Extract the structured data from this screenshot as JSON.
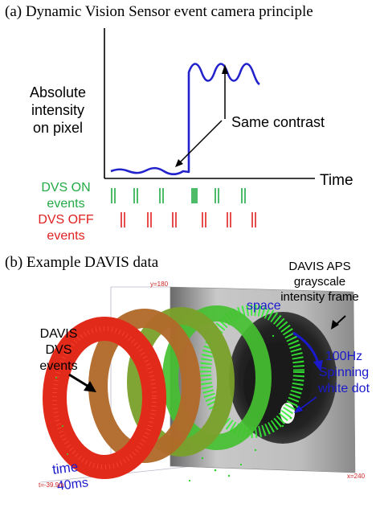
{
  "panel_a": {
    "title": "(a) Dynamic Vision Sensor event camera principle",
    "ylabel_lines": [
      "Absolute",
      "intensity",
      "on pixel"
    ],
    "xlabel": "Time",
    "annotation": "Same contrast",
    "on_events_lines": [
      "DVS ON",
      "events"
    ],
    "off_events_lines": [
      "DVS OFF",
      "events"
    ],
    "colors": {
      "signal": "#2222cc",
      "on": "#22aa44",
      "off": "#e02020",
      "axis": "#000000"
    }
  },
  "panel_b": {
    "title": "(b) Example DAVIS data",
    "aps_label_lines": [
      "DAVIS APS",
      "grayscale",
      "intensity frame"
    ],
    "dvs_label_lines": [
      "DAVIS",
      "DVS",
      "events"
    ],
    "space_label": "space",
    "spin_label_lines": [
      "100Hz",
      "Spinning",
      "white dot"
    ],
    "time_label": "time",
    "duration_label": "40ms",
    "axis_y_label": "y=180",
    "axis_x_label": "x=240",
    "axis_t_label": "t=-39.9m",
    "colors": {
      "blue_text": "#1a1acc",
      "tick_text": "#cc2222"
    }
  }
}
